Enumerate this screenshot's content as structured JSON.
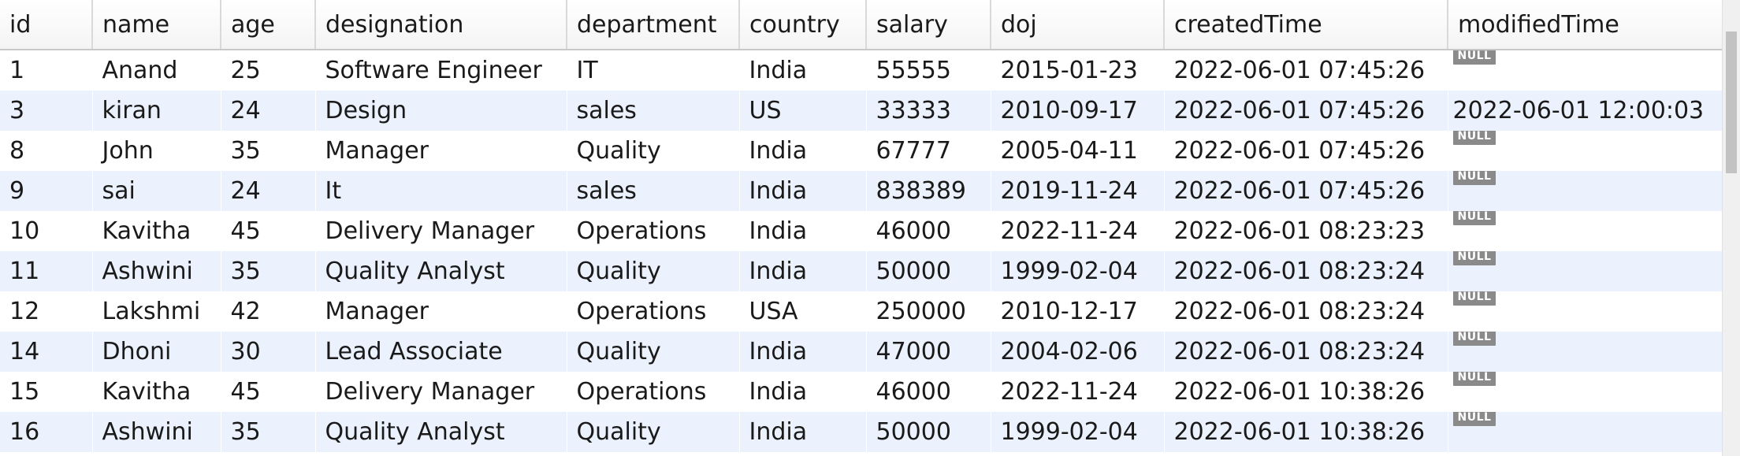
{
  "columns": [
    "id",
    "name",
    "age",
    "designation",
    "department",
    "country",
    "salary",
    "doj",
    "createdTime",
    "modifiedTime"
  ],
  "null_label": "NULL",
  "rows": [
    {
      "id": "1",
      "name": "Anand",
      "age": "25",
      "designation": "Software Engineer",
      "department": "IT",
      "country": "India",
      "salary": "55555",
      "doj": "2015-01-23",
      "createdTime": "2022-06-01 07:45:26",
      "modifiedTime": null
    },
    {
      "id": "3",
      "name": "kiran",
      "age": "24",
      "designation": "Design",
      "department": "sales",
      "country": "US",
      "salary": "33333",
      "doj": "2010-09-17",
      "createdTime": "2022-06-01 07:45:26",
      "modifiedTime": "2022-06-01 12:00:03"
    },
    {
      "id": "8",
      "name": "John",
      "age": "35",
      "designation": "Manager",
      "department": "Quality",
      "country": "India",
      "salary": "67777",
      "doj": "2005-04-11",
      "createdTime": "2022-06-01 07:45:26",
      "modifiedTime": null
    },
    {
      "id": "9",
      "name": "sai",
      "age": "24",
      "designation": "It",
      "department": "sales",
      "country": "India",
      "salary": "838389",
      "doj": "2019-11-24",
      "createdTime": "2022-06-01 07:45:26",
      "modifiedTime": null
    },
    {
      "id": "10",
      "name": "Kavitha",
      "age": "45",
      "designation": "Delivery Manager",
      "department": "Operations",
      "country": "India",
      "salary": "46000",
      "doj": "2022-11-24",
      "createdTime": "2022-06-01 08:23:23",
      "modifiedTime": null
    },
    {
      "id": "11",
      "name": "Ashwini",
      "age": "35",
      "designation": "Quality Analyst",
      "department": "Quality",
      "country": "India",
      "salary": "50000",
      "doj": "1999-02-04",
      "createdTime": "2022-06-01 08:23:24",
      "modifiedTime": null
    },
    {
      "id": "12",
      "name": "Lakshmi",
      "age": "42",
      "designation": "Manager",
      "department": "Operations",
      "country": "USA",
      "salary": "250000",
      "doj": "2010-12-17",
      "createdTime": "2022-06-01 08:23:24",
      "modifiedTime": null
    },
    {
      "id": "14",
      "name": "Dhoni",
      "age": "30",
      "designation": "Lead Associate",
      "department": "Quality",
      "country": "India",
      "salary": "47000",
      "doj": "2004-02-06",
      "createdTime": "2022-06-01 08:23:24",
      "modifiedTime": null
    },
    {
      "id": "15",
      "name": "Kavitha",
      "age": "45",
      "designation": "Delivery Manager",
      "department": "Operations",
      "country": "India",
      "salary": "46000",
      "doj": "2022-11-24",
      "createdTime": "2022-06-01 10:38:26",
      "modifiedTime": null
    },
    {
      "id": "16",
      "name": "Ashwini",
      "age": "35",
      "designation": "Quality Analyst",
      "department": "Quality",
      "country": "India",
      "salary": "50000",
      "doj": "1999-02-04",
      "createdTime": "2022-06-01 10:38:26",
      "modifiedTime": null
    }
  ]
}
